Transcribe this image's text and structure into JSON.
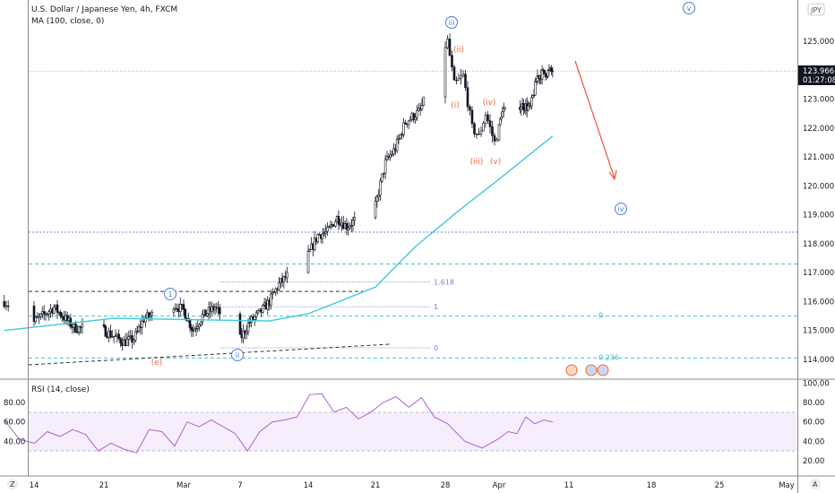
{
  "header": {
    "symbol_title": "U.S. Dollar / Japanese Yen, 4h, FXCM",
    "indicator_ma": "MA (100, close, 0)",
    "indicator_rsi": "RSI (14, close)",
    "currency_badge": "JPY"
  },
  "price_axis": {
    "ticks": [
      "125.000",
      "123.000",
      "122.000",
      "121.000",
      "120.000",
      "119.000",
      "118.000",
      "117.000",
      "116.000",
      "115.000",
      "114.000"
    ],
    "last_price": "123.966",
    "countdown": "01:27:08"
  },
  "rsi_axis": {
    "ticks": [
      "100.00",
      "80.00",
      "60.00",
      "40.00",
      "20.00"
    ],
    "left_ticks": [
      "80.00",
      "60.00",
      "40.00"
    ]
  },
  "time_axis": {
    "ticks": [
      "14",
      "21",
      "Mar",
      "7",
      "14",
      "21",
      "28",
      "Apr",
      "11",
      "18",
      "25",
      "May"
    ],
    "left_button": "Z",
    "right_button": "A"
  },
  "annotations": {
    "wave_circled": [
      "iii",
      "v",
      "iv",
      "1",
      "ii"
    ],
    "wave_orange": [
      "(ii)",
      "(i)",
      "(iv)",
      "(iii)",
      "(v)",
      "(e)"
    ],
    "fib_labels": [
      "1.618",
      "1",
      "0"
    ],
    "fib_cyan_labels": [
      "0",
      "0.236"
    ]
  },
  "colors": {
    "candle": "#131722",
    "ma": "#3fc8dc",
    "rsi": "#b05fd0",
    "rsi_band": "#f6eefc",
    "wave_orange": "#f26b3a",
    "wave_blue": "#4a7bdc",
    "arrow": "#f0553a",
    "fib": "#7a7fe0"
  },
  "chart_data": {
    "type": "candlestick",
    "title": "U.S. Dollar / Japanese Yen, 4h, FXCM",
    "ylim": [
      113.6,
      126.0
    ],
    "price_path": [
      [
        "2022-02-11T12",
        116.0
      ],
      [
        "2022-02-14T00",
        115.3
      ],
      [
        "2022-02-16T00",
        115.8
      ],
      [
        "2022-02-18T00",
        115.1
      ],
      [
        "2022-02-21T00",
        115.0
      ],
      [
        "2022-02-23T00",
        114.6
      ],
      [
        "2022-02-24T00",
        114.7
      ],
      [
        "2022-02-25T00",
        115.4
      ],
      [
        "2022-02-28T00",
        115.9
      ],
      [
        "2022-03-01T00",
        115.7
      ],
      [
        "2022-03-02T00",
        115.0
      ],
      [
        "2022-03-03T00",
        115.5
      ],
      [
        "2022-03-04T08",
        115.8
      ],
      [
        "2022-03-07T00",
        114.7
      ],
      [
        "2022-03-08T00",
        115.3
      ],
      [
        "2022-03-09T00",
        115.6
      ],
      [
        "2022-03-10T00",
        116.0
      ],
      [
        "2022-03-11T00",
        116.6
      ],
      [
        "2022-03-14T00",
        117.6
      ],
      [
        "2022-03-15T00",
        118.3
      ],
      [
        "2022-03-16T00",
        118.4
      ],
      [
        "2022-03-17T00",
        118.9
      ],
      [
        "2022-03-18T00",
        118.6
      ],
      [
        "2022-03-21T00",
        119.3
      ],
      [
        "2022-03-22T00",
        120.8
      ],
      [
        "2022-03-23T00",
        121.3
      ],
      [
        "2022-03-24T00",
        122.2
      ],
      [
        "2022-03-25T12",
        122.6
      ],
      [
        "2022-03-28T04",
        125.0
      ],
      [
        "2022-03-28T16",
        123.5
      ],
      [
        "2022-03-29T08",
        123.8
      ],
      [
        "2022-03-30T00",
        122.0
      ],
      [
        "2022-03-30T12",
        121.7
      ],
      [
        "2022-03-31T00",
        122.5
      ],
      [
        "2022-03-31T16",
        121.5
      ],
      [
        "2022-04-01T08",
        122.5
      ],
      [
        "2022-04-04T00",
        122.8
      ],
      [
        "2022-04-05T12",
        122.7
      ],
      [
        "2022-04-06T12",
        123.8
      ],
      [
        "2022-04-07T12",
        123.9
      ],
      [
        "2022-04-08T16",
        123.966
      ]
    ],
    "ma_path": [
      [
        "2022-02-11T12",
        115.0
      ],
      [
        "2022-02-22T00",
        115.42
      ],
      [
        "2022-03-10T00",
        115.33
      ],
      [
        "2022-03-14T00",
        115.58
      ],
      [
        "2022-03-21T00",
        116.5
      ],
      [
        "2022-03-25T00",
        117.9
      ],
      [
        "2022-03-29T00",
        119.14
      ],
      [
        "2022-04-01T00",
        120.23
      ],
      [
        "2022-04-08T16",
        121.72
      ]
    ],
    "levels": {
      "blue_dotted": 118.4,
      "cyan_dashed": [
        117.3,
        115.5,
        114.05
      ],
      "last_price_line": 123.966,
      "fib_1618": 116.68,
      "fib_1": 115.82,
      "fib_0": 114.4,
      "black_dashed_resistance": 116.35
    },
    "rsi": {
      "start": "2022-02-11T12",
      "end": "2022-04-08T16",
      "band": [
        30,
        70
      ],
      "values": [
        62,
        42,
        38,
        50,
        45,
        52,
        47,
        30,
        38,
        32,
        28,
        52,
        50,
        35,
        60,
        55,
        62,
        55,
        48,
        30,
        50,
        60,
        62,
        65,
        88,
        89,
        70,
        75,
        63,
        70,
        80,
        86,
        75,
        85,
        65,
        58,
        40,
        33,
        43,
        50,
        48,
        65,
        58,
        62,
        60
      ]
    }
  }
}
